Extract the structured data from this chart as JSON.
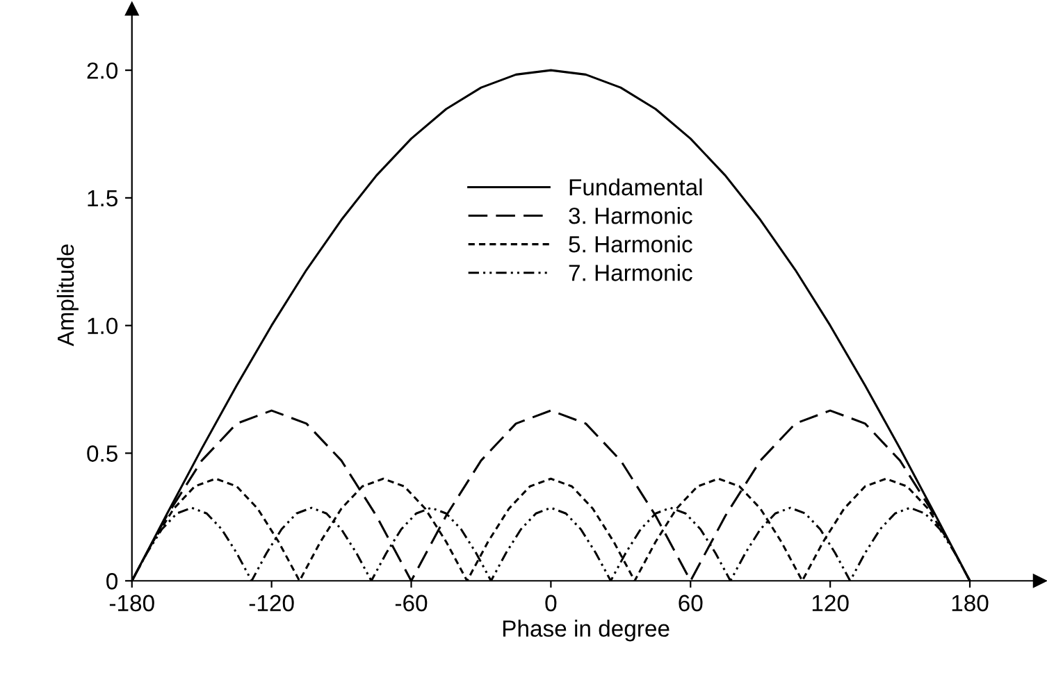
{
  "chart_data": {
    "type": "line",
    "xlabel": "Phase in degree",
    "ylabel": "Amplitude",
    "xlim": [
      -180,
      210
    ],
    "ylim": [
      0,
      2.24
    ],
    "xticks": [
      -180,
      -120,
      -60,
      0,
      60,
      120,
      180
    ],
    "yticks": [
      0,
      {
        "value": 0.5,
        "label": "0.5"
      },
      {
        "value": 1.0,
        "label": "1.0"
      },
      {
        "value": 1.5,
        "label": "1.5"
      },
      {
        "value": 2.0,
        "label": "2.0"
      }
    ],
    "grid": false,
    "legend": "top",
    "marker": "none",
    "series": [
      {
        "name": "Fundamental",
        "color": "#000000",
        "line_style": "solid",
        "x": [
          -180,
          -165,
          -150,
          -135,
          -120,
          -105,
          -90,
          -75,
          -60,
          -45,
          -30,
          -15,
          0,
          15,
          30,
          45,
          60,
          75,
          90,
          105,
          120,
          135,
          150,
          165,
          180
        ],
        "values": [
          0,
          0.261,
          0.518,
          0.765,
          1.0,
          1.218,
          1.414,
          1.587,
          1.732,
          1.848,
          1.932,
          1.983,
          2.0,
          1.983,
          1.932,
          1.848,
          1.732,
          1.587,
          1.414,
          1.218,
          1.0,
          0.765,
          0.518,
          0.261,
          0
        ]
      },
      {
        "name": "3. Harmonic",
        "color": "#000000",
        "line_style": "dashed",
        "x": [
          -180,
          -165,
          -150,
          -135,
          -120,
          -105,
          -90,
          -75,
          -60,
          -45,
          -30,
          -15,
          0,
          15,
          30,
          45,
          60,
          75,
          90,
          105,
          120,
          135,
          150,
          165,
          180
        ],
        "values": [
          0,
          0.255,
          0.471,
          0.616,
          0.667,
          0.616,
          0.471,
          0.255,
          0,
          0.255,
          0.471,
          0.616,
          0.667,
          0.616,
          0.471,
          0.255,
          0,
          0.255,
          0.471,
          0.616,
          0.667,
          0.616,
          0.471,
          0.255,
          0
        ]
      },
      {
        "name": "5. Harmonic",
        "color": "#000000",
        "line_style": "dotted",
        "x": [
          -180,
          -171,
          -162,
          -153,
          -144,
          -135,
          -126,
          -117,
          -108,
          -99,
          -90,
          -81,
          -72,
          -63,
          -54,
          -45,
          -36,
          -27,
          -18,
          -9,
          0,
          9,
          18,
          27,
          36,
          45,
          54,
          63,
          72,
          81,
          90,
          99,
          108,
          117,
          126,
          135,
          144,
          153,
          162,
          171,
          180
        ],
        "values": [
          0,
          0.153,
          0.283,
          0.37,
          0.4,
          0.37,
          0.283,
          0.153,
          0,
          0.153,
          0.283,
          0.37,
          0.4,
          0.37,
          0.283,
          0.153,
          0,
          0.153,
          0.283,
          0.37,
          0.4,
          0.37,
          0.283,
          0.153,
          0,
          0.153,
          0.283,
          0.37,
          0.4,
          0.37,
          0.283,
          0.153,
          0,
          0.153,
          0.283,
          0.37,
          0.4,
          0.37,
          0.283,
          0.153,
          0
        ]
      },
      {
        "name": "7. Harmonic",
        "color": "#000000",
        "line_style": "dashdotdot",
        "x": [
          -180,
          -173.57,
          -167.14,
          -160.71,
          -154.29,
          -147.86,
          -141.43,
          -135,
          -128.57,
          -122.14,
          -115.71,
          -109.29,
          -102.86,
          -96.43,
          -90,
          -83.57,
          -77.14,
          -70.71,
          -64.29,
          -57.86,
          -51.43,
          -45,
          -38.57,
          -32.14,
          -25.71,
          -19.29,
          -12.86,
          -6.43,
          0,
          6.43,
          12.86,
          19.29,
          25.71,
          32.14,
          38.57,
          45,
          51.43,
          57.86,
          64.29,
          70.71,
          77.14,
          83.57,
          90,
          96.43,
          102.86,
          109.29,
          115.71,
          122.14,
          128.57,
          135,
          141.43,
          147.86,
          154.29,
          160.71,
          167.14,
          173.57,
          180
        ],
        "values": [
          0,
          0.109,
          0.202,
          0.264,
          0.286,
          0.264,
          0.202,
          0.109,
          0,
          0.109,
          0.202,
          0.264,
          0.286,
          0.264,
          0.202,
          0.109,
          0,
          0.109,
          0.202,
          0.264,
          0.286,
          0.264,
          0.202,
          0.109,
          0,
          0.109,
          0.202,
          0.264,
          0.286,
          0.264,
          0.202,
          0.109,
          0,
          0.109,
          0.202,
          0.264,
          0.286,
          0.264,
          0.202,
          0.109,
          0,
          0.109,
          0.202,
          0.264,
          0.286,
          0.264,
          0.202,
          0.109,
          0,
          0.109,
          0.202,
          0.264,
          0.286,
          0.264,
          0.202,
          0.109,
          0
        ]
      }
    ]
  }
}
